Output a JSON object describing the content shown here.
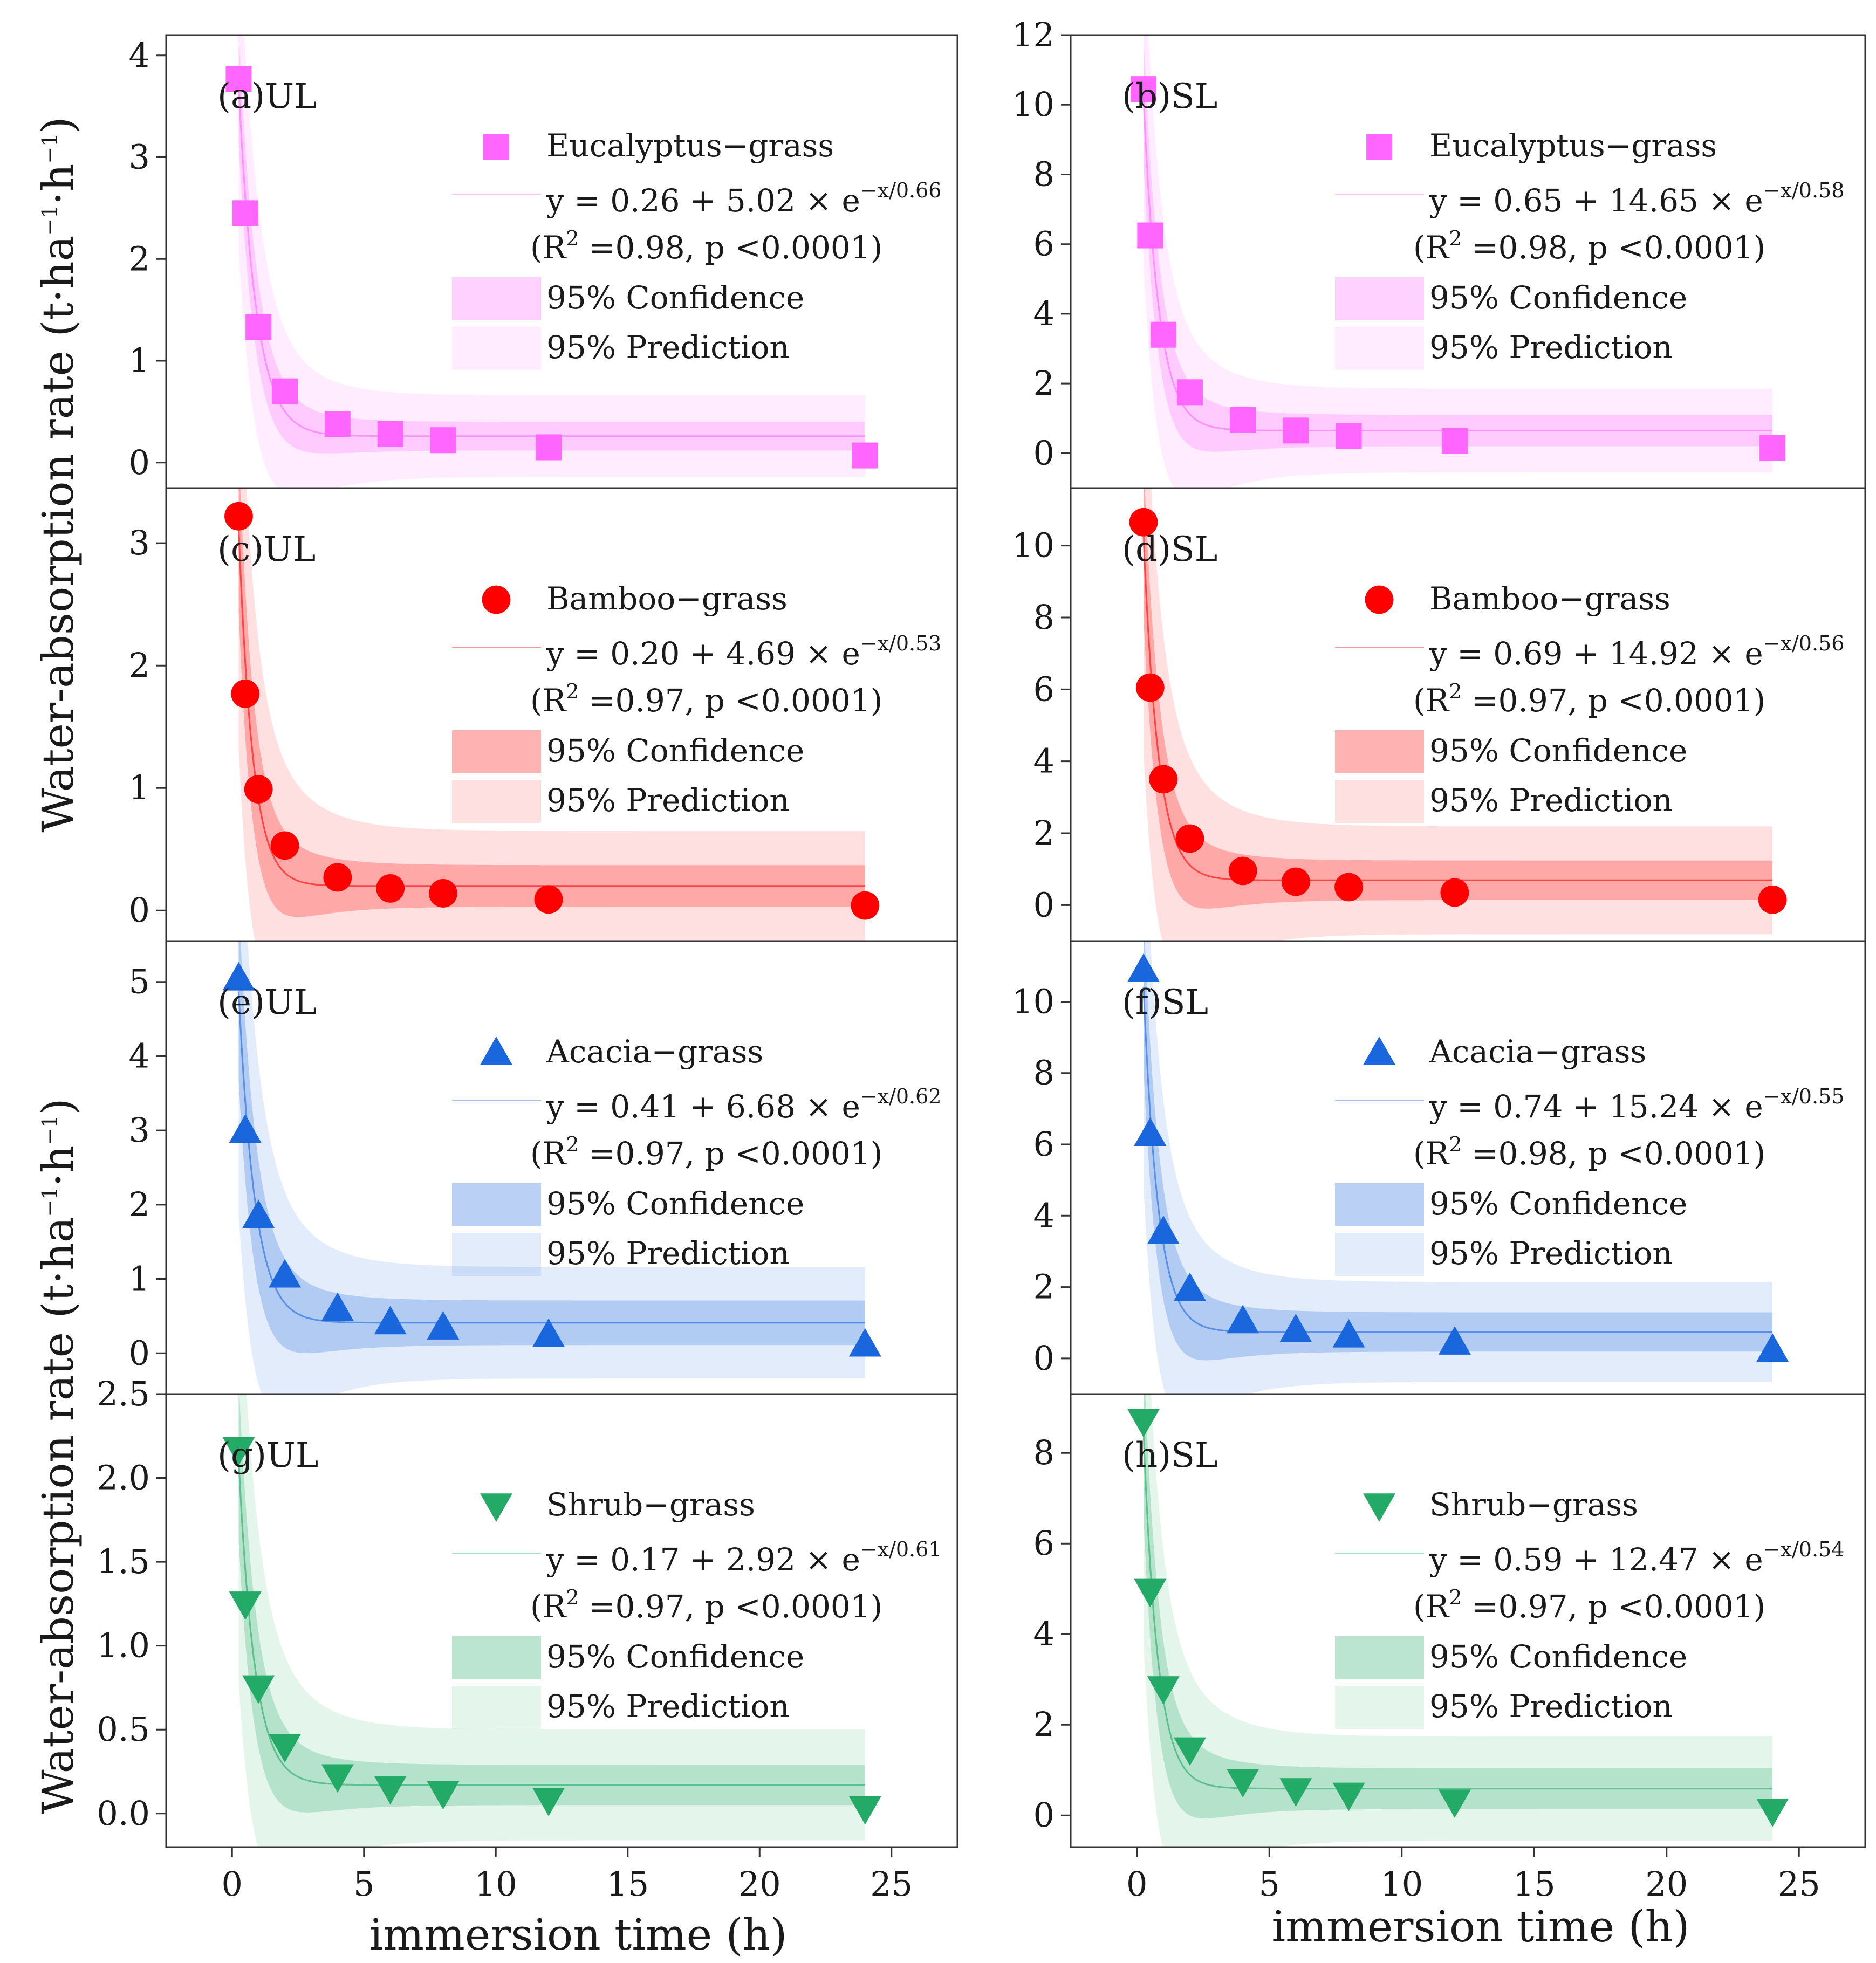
{
  "figure": {
    "left_y_axis_title": "Water-absorption rate",
    "left_y_axis_unit_parts": [
      "(t·ha",
      "−1",
      "·h",
      "−1",
      ")"
    ],
    "x_axis_title_left": "immersion time (h)",
    "x_axis_title_right": "immersion time (h)"
  },
  "chart_data": [
    {
      "type": "scatter",
      "panel": "(a)UL",
      "title": "(a)UL",
      "series_name": "Eucalyptus−grass",
      "color": "#ff66ff",
      "marker": "square",
      "x": [
        0.25,
        0.5,
        1,
        2,
        4,
        6,
        8,
        12,
        24
      ],
      "y": [
        3.77,
        2.45,
        1.33,
        0.7,
        0.38,
        0.28,
        0.22,
        0.15,
        0.07
      ],
      "fit": {
        "a": 0.26,
        "b": 5.02,
        "c": 0.66
      },
      "equation": "y = 0.26 + 5.02 × e",
      "exponent": "−x/0.66",
      "stats": {
        "open": "(R",
        "sup": "2",
        "rest": " =0.98, p <0.0001)"
      },
      "band_conf": 0.14,
      "band_pred": 0.4,
      "legend_conf": "95% Confidence",
      "legend_pred": "95% Prediction",
      "ylim": [
        -0.25,
        4.2
      ],
      "yticks": [
        0,
        1,
        2,
        3,
        4
      ],
      "ytick_labels": [
        "0",
        "1",
        "2",
        "3",
        "4"
      ],
      "xlim": [
        -2.5,
        27.5
      ],
      "xticks": [
        0,
        5,
        10,
        15,
        20,
        25
      ],
      "xtick_labels": []
    },
    {
      "type": "scatter",
      "panel": "(b)SL",
      "title": "(b)SL",
      "series_name": "Eucalyptus−grass",
      "color": "#ff66ff",
      "marker": "square",
      "x": [
        0.25,
        0.5,
        1,
        2,
        4,
        6,
        8,
        12,
        24
      ],
      "y": [
        10.45,
        6.25,
        3.4,
        1.75,
        0.95,
        0.65,
        0.5,
        0.35,
        0.15
      ],
      "fit": {
        "a": 0.65,
        "b": 14.65,
        "c": 0.58
      },
      "equation": "y = 0.65 + 14.65 × e",
      "exponent": "−x/0.58",
      "stats": {
        "open": "(R",
        "sup": "2",
        "rest": " =0.98, p <0.0001)"
      },
      "band_conf": 0.45,
      "band_pred": 1.2,
      "legend_conf": "95% Confidence",
      "legend_pred": "95% Prediction",
      "ylim": [
        -1.0,
        12.0
      ],
      "yticks": [
        0,
        2,
        4,
        6,
        8,
        10,
        12
      ],
      "ytick_labels": [
        "0",
        "2",
        "4",
        "6",
        "8",
        "10",
        "12"
      ],
      "xlim": [
        -2.5,
        27.5
      ],
      "xticks": [
        0,
        5,
        10,
        15,
        20,
        25
      ],
      "xtick_labels": []
    },
    {
      "type": "scatter",
      "panel": "(c)UL",
      "title": "(c)UL",
      "series_name": "Bamboo−grass",
      "color": "#ff0000",
      "marker": "circle",
      "x": [
        0.25,
        0.5,
        1,
        2,
        4,
        6,
        8,
        12,
        24
      ],
      "y": [
        3.22,
        1.77,
        0.99,
        0.53,
        0.27,
        0.18,
        0.14,
        0.09,
        0.04
      ],
      "fit": {
        "a": 0.2,
        "b": 4.69,
        "c": 0.53
      },
      "equation": "y = 0.20 + 4.69 × e",
      "exponent": "−x/0.53",
      "stats": {
        "open": "(R",
        "sup": "2",
        "rest": " =0.97, p <0.0001)"
      },
      "band_conf": 0.17,
      "band_pred": 0.45,
      "legend_conf": "95% Confidence",
      "legend_pred": "95% Prediction",
      "ylim": [
        -0.25,
        3.45
      ],
      "yticks": [
        0,
        1,
        2,
        3
      ],
      "ytick_labels": [
        "0",
        "1",
        "2",
        "3"
      ],
      "xlim": [
        -2.5,
        27.5
      ],
      "xticks": [
        0,
        5,
        10,
        15,
        20,
        25
      ],
      "xtick_labels": []
    },
    {
      "type": "scatter",
      "panel": "(d)SL",
      "title": "(d)SL",
      "series_name": "Bamboo−grass",
      "color": "#ff0000",
      "marker": "circle",
      "x": [
        0.25,
        0.5,
        1,
        2,
        4,
        6,
        8,
        12,
        24
      ],
      "y": [
        10.65,
        6.05,
        3.5,
        1.85,
        0.95,
        0.65,
        0.5,
        0.35,
        0.15
      ],
      "fit": {
        "a": 0.69,
        "b": 14.92,
        "c": 0.56
      },
      "equation": "y = 0.69 + 14.92 × e",
      "exponent": "−x/0.56",
      "stats": {
        "open": "(R",
        "sup": "2",
        "rest": " =0.97, p <0.0001)"
      },
      "band_conf": 0.55,
      "band_pred": 1.5,
      "legend_conf": "95% Confidence",
      "legend_pred": "95% Prediction",
      "ylim": [
        -1.0,
        11.6
      ],
      "yticks": [
        0,
        2,
        4,
        6,
        8,
        10
      ],
      "ytick_labels": [
        "0",
        "2",
        "4",
        "6",
        "8",
        "10"
      ],
      "xlim": [
        -2.5,
        27.5
      ],
      "xticks": [
        0,
        5,
        10,
        15,
        20,
        25
      ],
      "xtick_labels": []
    },
    {
      "type": "scatter",
      "panel": "(e)UL",
      "title": "(e)UL",
      "series_name": "Acacia−grass",
      "color": "#1a66dd",
      "marker": "triangle-up",
      "x": [
        0.25,
        0.5,
        1,
        2,
        4,
        6,
        8,
        12,
        24
      ],
      "y": [
        5.05,
        3.0,
        1.85,
        1.05,
        0.6,
        0.42,
        0.35,
        0.25,
        0.12
      ],
      "fit": {
        "a": 0.41,
        "b": 6.68,
        "c": 0.62
      },
      "equation": "y = 0.41 + 6.68 × e",
      "exponent": "−x/0.62",
      "stats": {
        "open": "(R",
        "sup": "2",
        "rest": " =0.97, p <0.0001)"
      },
      "band_conf": 0.3,
      "band_pred": 0.75,
      "legend_conf": "95% Confidence",
      "legend_pred": "95% Prediction",
      "ylim": [
        -0.55,
        5.55
      ],
      "yticks": [
        0,
        1,
        2,
        3,
        4,
        5
      ],
      "ytick_labels": [
        "0",
        "1",
        "2",
        "3",
        "4",
        "5"
      ],
      "xlim": [
        -2.5,
        27.5
      ],
      "xticks": [
        0,
        5,
        10,
        15,
        20,
        25
      ],
      "xtick_labels": []
    },
    {
      "type": "scatter",
      "panel": "(f)SL",
      "title": "(f)SL",
      "series_name": "Acacia−grass",
      "color": "#1a66dd",
      "marker": "triangle-up",
      "x": [
        0.25,
        0.5,
        1,
        2,
        4,
        6,
        8,
        12,
        24
      ],
      "y": [
        10.9,
        6.3,
        3.55,
        1.95,
        1.05,
        0.8,
        0.65,
        0.45,
        0.25
      ],
      "fit": {
        "a": 0.74,
        "b": 15.24,
        "c": 0.55
      },
      "equation": "y = 0.74 + 15.24 × e",
      "exponent": "−x/0.55",
      "stats": {
        "open": "(R",
        "sup": "2",
        "rest": " =0.98, p <0.0001)"
      },
      "band_conf": 0.55,
      "band_pred": 1.4,
      "legend_conf": "95% Confidence",
      "legend_pred": "95% Prediction",
      "ylim": [
        -1.0,
        11.7
      ],
      "yticks": [
        0,
        2,
        4,
        6,
        8,
        10
      ],
      "ytick_labels": [
        "0",
        "2",
        "4",
        "6",
        "8",
        "10"
      ],
      "xlim": [
        -2.5,
        27.5
      ],
      "xticks": [
        0,
        5,
        10,
        15,
        20,
        25
      ],
      "xtick_labels": []
    },
    {
      "type": "scatter",
      "panel": "(g)UL",
      "title": "(g)UL",
      "series_name": "Shrub−grass",
      "color": "#22aa66",
      "marker": "triangle-down",
      "x": [
        0.25,
        0.5,
        1,
        2,
        4,
        6,
        8,
        12,
        24
      ],
      "y": [
        2.17,
        1.25,
        0.75,
        0.4,
        0.22,
        0.15,
        0.12,
        0.08,
        0.03
      ],
      "fit": {
        "a": 0.17,
        "b": 2.92,
        "c": 0.61
      },
      "equation": "y = 0.17 + 2.92 × e",
      "exponent": "−x/0.61",
      "stats": {
        "open": "(R",
        "sup": "2",
        "rest": " =0.97, p <0.0001)"
      },
      "band_conf": 0.12,
      "band_pred": 0.33,
      "legend_conf": "95% Confidence",
      "legend_pred": "95% Prediction",
      "ylim": [
        -0.2,
        2.5
      ],
      "yticks": [
        0,
        0.5,
        1,
        1.5,
        2,
        2.5
      ],
      "ytick_labels": [
        "0.0",
        "0.5",
        "1.0",
        "1.5",
        "2.0",
        "2.5"
      ],
      "xlim": [
        -2.5,
        27.5
      ],
      "xticks": [
        0,
        5,
        10,
        15,
        20,
        25
      ],
      "xtick_labels": [
        "0",
        "5",
        "10",
        "15",
        "20",
        "25"
      ]
    },
    {
      "type": "scatter",
      "panel": "(h)SL",
      "title": "(h)SL",
      "series_name": "Shrub−grass",
      "color": "#22aa66",
      "marker": "triangle-down",
      "x": [
        0.25,
        0.5,
        1,
        2,
        4,
        6,
        8,
        12,
        24
      ],
      "y": [
        8.7,
        4.95,
        2.8,
        1.45,
        0.75,
        0.55,
        0.45,
        0.3,
        0.1
      ],
      "fit": {
        "a": 0.59,
        "b": 12.47,
        "c": 0.54
      },
      "equation": "y = 0.59 + 12.47 × e",
      "exponent": "−x/0.54",
      "stats": {
        "open": "(R",
        "sup": "2",
        "rest": " =0.97, p <0.0001)"
      },
      "band_conf": 0.45,
      "band_pred": 1.15,
      "legend_conf": "95% Confidence",
      "legend_pred": "95% Prediction",
      "ylim": [
        -0.7,
        9.3
      ],
      "yticks": [
        0,
        2,
        4,
        6,
        8
      ],
      "ytick_labels": [
        "0",
        "2",
        "4",
        "6",
        "8"
      ],
      "xlim": [
        -2.5,
        27.5
      ],
      "xticks": [
        0,
        5,
        10,
        15,
        20,
        25
      ],
      "xtick_labels": [
        "0",
        "5",
        "10",
        "15",
        "20",
        "25"
      ]
    }
  ]
}
